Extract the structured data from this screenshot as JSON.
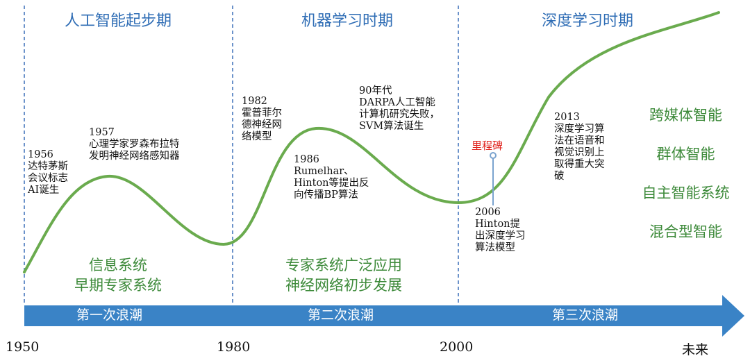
{
  "eras": [
    {
      "title": "人工智能起步期"
    },
    {
      "title": "机器学习时期"
    },
    {
      "title": "深度学习时期"
    }
  ],
  "annotations": {
    "y1956": [
      "1956",
      "达特茅斯",
      "会议标志",
      "AI诞生"
    ],
    "y1957": [
      "1957",
      "心理学家罗森布拉特",
      "发明神经网络感知器"
    ],
    "y1982": [
      "1982",
      "霍普菲尔",
      "德神经网",
      "络模型"
    ],
    "y1986": [
      "1986",
      "Rumelhar、",
      "Hinton等提出反",
      "向传播BP算法"
    ],
    "y90s": [
      "90年代",
      "DARPA人工智能",
      "计算机研究失败，",
      "SVM算法诞生"
    ],
    "y2006": [
      "2006",
      "Hinton提",
      "出深度学习",
      "算法模型"
    ],
    "y2013": [
      "2013",
      "深度学习算",
      "法在语音和",
      "视觉识别上",
      "取得重大突",
      "破"
    ]
  },
  "milestone_label": "里程碑",
  "applications": {
    "first": [
      "信息系统",
      "早期专家系统"
    ],
    "second": [
      "专家系统广泛应用",
      "神经网络初步发展"
    ]
  },
  "future_directions": [
    "跨媒体智能",
    "群体智能",
    "自主智能系统",
    "混合型智能"
  ],
  "waves": [
    "第一次浪潮",
    "第二次浪潮",
    "第三次浪潮"
  ],
  "years": [
    "1950",
    "1980",
    "2000",
    "未来"
  ],
  "colors": {
    "curve": "#6aab4e",
    "era_title": "#2f6db5",
    "divider": "#5b86c4",
    "arrow": "#3a83c6",
    "green_text": "#3d8a3a",
    "milestone": "#e0221c",
    "milestone_marker": "#7aa3cf"
  }
}
